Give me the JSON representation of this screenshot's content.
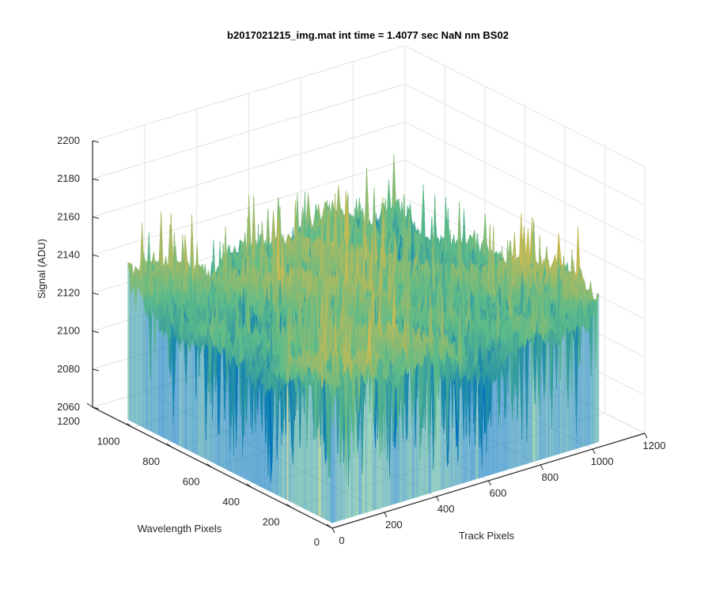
{
  "chart_data": {
    "type": "surface",
    "title": "b2017021215_img.mat int time = 1.4077 sec  NaN nm BS02",
    "xlabel": "Track Pixels",
    "ylabel": "Wavelength Pixels",
    "zlabel": "Signal (ADU)",
    "xlim": [
      0,
      1200
    ],
    "ylim": [
      0,
      1200
    ],
    "zlim": [
      2060,
      2200
    ],
    "x_ticks": [
      "0",
      "200",
      "400",
      "600",
      "800",
      "1000",
      "1200"
    ],
    "y_ticks": [
      "0",
      "200",
      "400",
      "600",
      "800",
      "1000",
      "1200"
    ],
    "z_ticks": [
      "2060",
      "2080",
      "2100",
      "2120",
      "2140",
      "2160",
      "2180",
      "2200"
    ],
    "grid": true,
    "surface": {
      "x_extent": [
        0,
        1024
      ],
      "y_extent": [
        0,
        1024
      ],
      "mean_signal": 2130,
      "min_signal": 2065,
      "max_signal": 2175,
      "colormap_low": "#0072BD",
      "colormap_mid": "#5DBB8A",
      "colormap_high": "#F6B93B"
    }
  }
}
